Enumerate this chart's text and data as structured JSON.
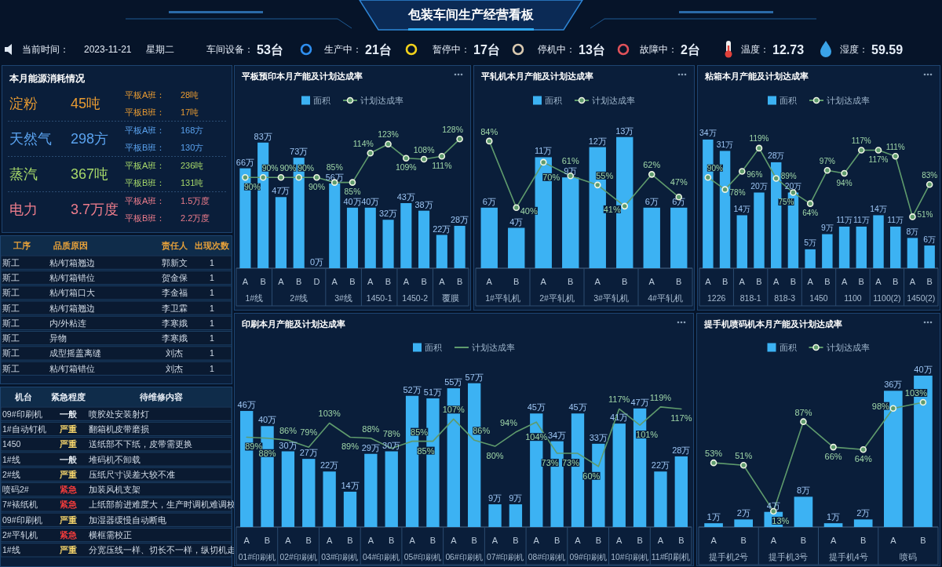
{
  "chart_data": [
    {
      "type": "other",
      "title": "包装车间生产经营看板",
      "annotations": [
        "当前时间：",
        "2023-11-21",
        "星期二",
        "车间设备：",
        "53台",
        "生产中：",
        "21台",
        "暂停中：",
        "17台",
        "停机中：",
        "13台",
        "故障中：",
        "2台",
        "温度：",
        "12.73",
        "湿度：",
        "59.59"
      ]
    },
    {
      "type": "other",
      "title": "本月能源消耗情况",
      "categories": [
        "淀粉",
        "天然气",
        "蒸汽",
        "电力"
      ],
      "annotations": [
        "45吨",
        "平板A班：",
        "28吨",
        "平板B班：",
        "17吨",
        "298方",
        "平板A班：",
        "168方",
        "平板B班：",
        "130方",
        "367吨",
        "平板A班：",
        "236吨",
        "平板B班：",
        "131吨",
        "3.7万度",
        "平板A班：",
        "1.5万度",
        "平板B班：",
        "2.2万度"
      ]
    },
    {
      "type": "other",
      "categories": [
        "工序",
        "品质原因",
        "责任人",
        "出现次数"
      ],
      "annotations": [
        "斯工",
        "粘/钉箱翘边",
        "郭新文",
        "1",
        "斯工",
        "粘/钉箱错位",
        "贺金保",
        "1",
        "斯工",
        "粘/钉箱口大",
        "李金福",
        "1",
        "斯工",
        "粘/钉箱翘边",
        "李卫霖",
        "1",
        "斯工",
        "内/外粘连",
        "李寒娥",
        "1",
        "斯工",
        "异物",
        "李寒娥",
        "1",
        "斯工",
        "成型摇盖离缝",
        "刘杰",
        "1",
        "斯工",
        "粘/钉箱错位",
        "刘杰",
        "1"
      ]
    },
    {
      "type": "other",
      "categories": [
        "机台",
        "紧急程度",
        "待维修内容"
      ],
      "annotations": [
        "09#印刷机",
        "一般",
        "喷胶处安装射灯",
        "1#自动钉机",
        "严重",
        "翻箱机皮带磨损",
        "1450",
        "严重",
        "送纸部不下纸，皮带需更换",
        "1#线",
        "一般",
        "堆码机不卸载",
        "2#线",
        "严重",
        "压纸尺寸误差大较不准",
        "喷码2#",
        "紧急",
        "加装风机支架",
        "7#裱纸机",
        "紧急",
        "上纸部前进难度大，生产时调机难调校",
        "09#印刷机",
        "严重",
        "加湿器缓慢自动断电",
        "2#平轧机",
        "紧急",
        "横框需校正",
        "1#线",
        "严重",
        "分宽压线一样、切长不一样，纵切机走"
      ]
    },
    {
      "type": "bar",
      "title": "平板预印本月产能及计划达成率",
      "legend": "top",
      "categories": [
        "A",
        "B",
        "A",
        "B",
        "D",
        "A",
        "B",
        "A",
        "B",
        "A",
        "B",
        "A",
        "B"
      ],
      "annotations": [
        "1#线",
        "2#线",
        "3#线",
        "1450-1",
        "1450-2",
        "覆膜"
      ],
      "series": [
        {
          "name": "面积",
          "color": "#3cb2f3",
          "values": [
            66,
            83,
            47,
            73,
            0,
            56,
            40,
            40,
            32,
            43,
            38,
            22,
            28
          ],
          "value_labels": [
            "66万",
            "83万",
            "47万",
            "73万",
            "0万",
            "56万",
            "40万",
            "40万",
            "32万",
            "43万",
            "38万",
            "22万",
            "28万"
          ]
        },
        {
          "name": "计划达成率",
          "type": "line",
          "axis": "y2",
          "color": "#5f9b6d",
          "marker": "circle",
          "values": [
            90,
            90,
            90,
            90,
            90,
            85,
            85,
            114,
            123,
            109,
            108,
            111,
            128
          ],
          "value_labels": [
            "90%",
            "90%",
            "90%",
            "90%",
            "90%",
            "85%",
            "85%",
            "114%",
            "123%",
            "109%",
            "108%",
            "111%",
            "128%"
          ]
        }
      ]
    },
    {
      "type": "bar",
      "title": "平轧机本月产能及计划达成率",
      "legend": "top",
      "categories": [
        "A",
        "B",
        "A",
        "B",
        "A",
        "B",
        "A",
        "B"
      ],
      "annotations": [
        "1#平轧机",
        "2#平轧机",
        "3#平轧机",
        "4#平轧机"
      ],
      "series": [
        {
          "name": "面积",
          "color": "#3cb2f3",
          "values": [
            6,
            4,
            11,
            9,
            12,
            13,
            6,
            6
          ],
          "value_labels": [
            "6万",
            "4万",
            "11万",
            "9万",
            "12万",
            "13万",
            "6万",
            "6万"
          ]
        },
        {
          "name": "计划达成率",
          "type": "line",
          "axis": "y2",
          "color": "#5f9b6d",
          "marker": "circle",
          "values": [
            84,
            40,
            70,
            61,
            55,
            41,
            62,
            47
          ],
          "value_labels": [
            "84%",
            "40%",
            "70%",
            "61%",
            "55%",
            "41%",
            "62%",
            "47%"
          ]
        }
      ]
    },
    {
      "type": "bar",
      "title": "粘箱本月产能及计划达成率",
      "legend": "top",
      "categories": [
        "A",
        "B",
        "A",
        "B",
        "A",
        "B",
        "A",
        "B",
        "A",
        "B",
        "A",
        "B",
        "A",
        "B"
      ],
      "annotations": [
        "1226",
        "818-1",
        "818-3",
        "1450",
        "1100",
        "1100(2)",
        "1450(2)"
      ],
      "series": [
        {
          "name": "面积",
          "color": "#3cb2f3",
          "values": [
            34,
            31,
            14,
            20,
            28,
            20,
            5,
            9,
            11,
            11,
            14,
            11,
            8,
            6
          ],
          "value_labels": [
            "34万",
            "31万",
            "14万",
            "20万",
            "28万",
            "20万",
            "5万",
            "9万",
            "11万",
            "11万",
            "14万",
            "11万",
            "8万",
            "6万"
          ]
        },
        {
          "name": "计划达成率",
          "type": "line",
          "axis": "y2",
          "color": "#5f9b6d",
          "marker": "circle",
          "values": [
            90,
            78,
            96,
            119,
            89,
            75,
            64,
            97,
            94,
            117,
            117,
            111,
            51,
            83
          ],
          "value_labels": [
            "90%",
            "78%",
            "96%",
            "119%",
            "89%",
            "75%",
            "64%",
            "97%",
            "94%",
            "117%",
            "117%",
            "111%",
            "51%",
            "83%"
          ]
        }
      ]
    },
    {
      "type": "bar",
      "title": "印刷本月产能及计划达成率",
      "legend": "top",
      "categories": [
        "A",
        "B",
        "A",
        "B",
        "A",
        "B",
        "A",
        "B",
        "A",
        "B",
        "A",
        "B",
        "A",
        "B",
        "A",
        "B",
        "A",
        "B",
        "A",
        "B",
        "A",
        "B"
      ],
      "annotations": [
        "01#印刷机",
        "02#印刷机",
        "03#印刷机",
        "04#印刷机",
        "05#印刷机",
        "06#印刷机",
        "07#印刷机",
        "08#印刷机",
        "09#印刷机",
        "10#印刷机",
        "11#印刷机"
      ],
      "series": [
        {
          "name": "面积",
          "color": "#3cb2f3",
          "values": [
            46,
            40,
            30,
            27,
            22,
            14,
            29,
            30,
            52,
            51,
            55,
            57,
            9,
            9,
            45,
            34,
            45,
            33,
            41,
            47,
            22,
            28
          ],
          "value_labels": [
            "46万",
            "40万",
            "30万",
            "27万",
            "22万",
            "14万",
            "29万",
            "30万",
            "52万",
            "51万",
            "55万",
            "57万",
            "9万",
            "9万",
            "45万",
            "34万",
            "45万",
            "33万",
            "41万",
            "47万",
            "22万",
            "28万"
          ]
        },
        {
          "name": "计划达成率",
          "type": "line",
          "axis": "y2",
          "color": "#5f9b6d",
          "values": [
            89,
            88,
            86,
            79,
            103,
            89,
            88,
            78,
            85,
            85,
            107,
            86,
            80,
            94,
            104,
            73,
            73,
            60,
            117,
            101,
            119,
            117
          ],
          "value_labels": [
            "89%",
            "88%",
            "86%",
            "79%",
            "103%",
            "89%",
            "88%",
            "78%",
            "85%",
            "85%",
            "107%",
            "86%",
            "80%",
            "94%",
            "104%",
            "73%",
            "73%",
            "60%",
            "117%",
            "101%",
            "119%",
            "117%"
          ]
        }
      ]
    },
    {
      "type": "bar",
      "title": "提手机喷码机本月产能及计划达成率",
      "legend": "top",
      "categories": [
        "A",
        "B",
        "A",
        "B",
        "A",
        "B",
        "A",
        "B"
      ],
      "annotations": [
        "提手机2号",
        "提手机3号",
        "提手机4号",
        "喷码"
      ],
      "series": [
        {
          "name": "面积",
          "color": "#3cb2f3",
          "values": [
            1,
            2,
            4,
            8,
            1,
            2,
            36,
            40
          ],
          "value_labels": [
            "1万",
            "2万",
            "4万",
            "8万",
            "1万",
            "2万",
            "36万",
            "40万"
          ]
        },
        {
          "name": "计划达成率",
          "type": "line",
          "axis": "y2",
          "color": "#5f9b6d",
          "marker": "circle",
          "values": [
            53,
            51,
            13,
            87,
            66,
            64,
            98,
            103
          ],
          "value_labels": [
            "53%",
            "51%",
            "13%",
            "87%",
            "66%",
            "64%",
            "98%",
            "103%"
          ]
        }
      ]
    }
  ]
}
